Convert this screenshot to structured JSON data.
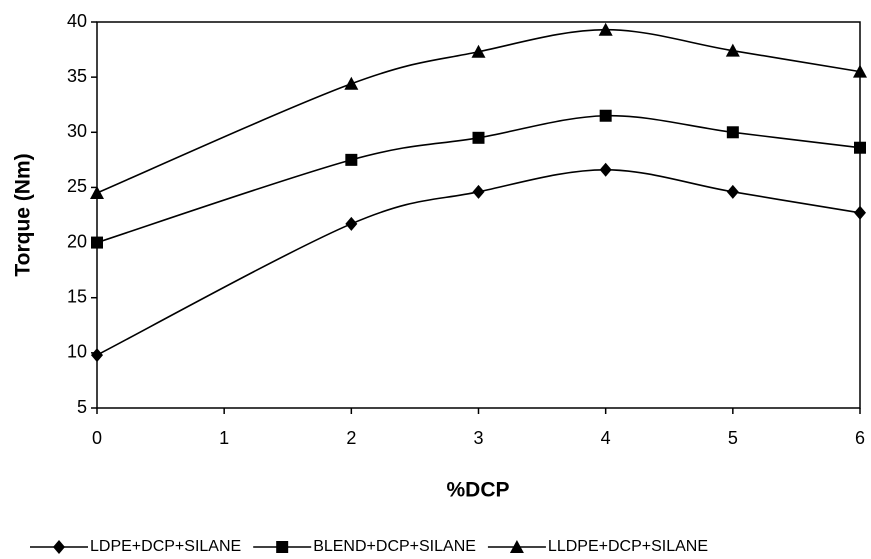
{
  "chart_data": {
    "type": "line",
    "x_label": "%DCP",
    "y_label": "Torque (Nm)",
    "x": [
      0,
      2,
      3,
      4,
      5,
      6
    ],
    "series": [
      {
        "name": "LDPE+DCP+SILANE",
        "color": "#000000",
        "marker": "diamond",
        "values": [
          9.8,
          21.7,
          24.6,
          26.6,
          24.6,
          22.7
        ]
      },
      {
        "name": "BLEND+DCP+SILANE",
        "color": "#000000",
        "marker": "square",
        "values": [
          20,
          27.5,
          29.5,
          31.5,
          30,
          28.6
        ]
      },
      {
        "name": "LLDPE+DCP+SILANE",
        "color": "#000000",
        "marker": "triangle",
        "values": [
          24.5,
          34.4,
          37.3,
          39.3,
          37.4,
          35.5
        ]
      }
    ],
    "xlim": [
      0,
      6
    ],
    "xticks": [
      0,
      1,
      2,
      3,
      4,
      5,
      6
    ],
    "ylim": [
      5,
      40
    ],
    "yticks": [
      5,
      10,
      15,
      20,
      25,
      30,
      35,
      40
    ],
    "grid": false,
    "legend": "bottom"
  }
}
